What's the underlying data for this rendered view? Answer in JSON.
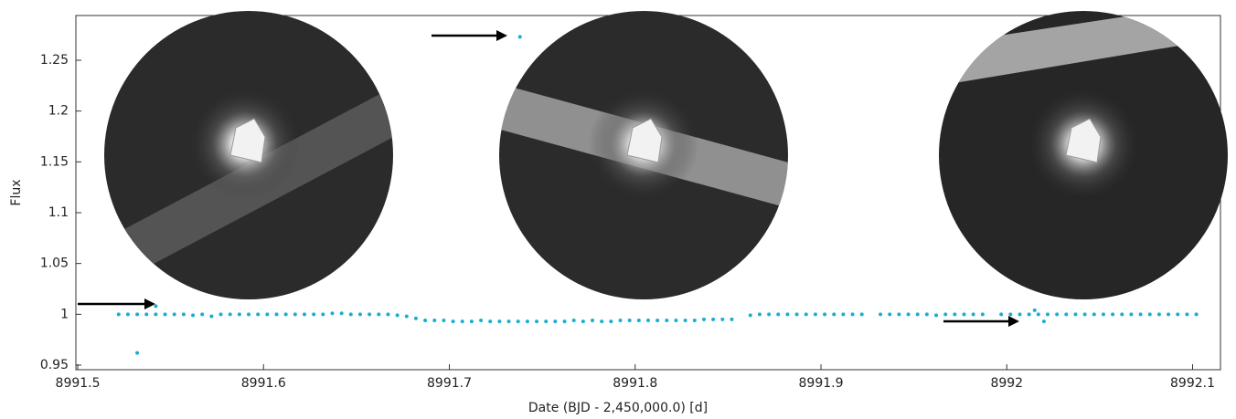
{
  "chart_data": {
    "type": "scatter",
    "xlabel": "Date (BJD - 2,450,000.0) [d]",
    "ylabel": "Flux",
    "color": "#1aaed0",
    "xlim": [
      8991.499,
      8992.115
    ],
    "ylim": [
      0.9455,
      1.294
    ],
    "xticks": [
      8991.5,
      8991.6,
      8991.7,
      8991.8,
      8991.9,
      8992,
      8992.1
    ],
    "yticks": [
      0.95,
      1,
      1.05,
      1.1,
      1.15,
      1.2,
      1.25
    ],
    "x": [
      8991.522,
      8991.527,
      8991.532,
      8991.537,
      8991.542,
      8991.547,
      8991.552,
      8991.557,
      8991.562,
      8991.567,
      8991.572,
      8991.577,
      8991.582,
      8991.587,
      8991.592,
      8991.597,
      8991.602,
      8991.607,
      8991.612,
      8991.617,
      8991.622,
      8991.627,
      8991.632,
      8991.637,
      8991.642,
      8991.647,
      8991.652,
      8991.657,
      8991.662,
      8991.667,
      8991.672,
      8991.677,
      8991.682,
      8991.687,
      8991.692,
      8991.697,
      8991.702,
      8991.707,
      8991.712,
      8991.717,
      8991.722,
      8991.727,
      8991.732,
      8991.737,
      8991.742,
      8991.747,
      8991.752,
      8991.757,
      8991.762,
      8991.767,
      8991.772,
      8991.777,
      8991.782,
      8991.787,
      8991.792,
      8991.797,
      8991.802,
      8991.807,
      8991.812,
      8991.817,
      8991.822,
      8991.827,
      8991.832,
      8991.837,
      8991.842,
      8991.847,
      8991.852,
      8991.862,
      8991.867,
      8991.872,
      8991.877,
      8991.882,
      8991.887,
      8991.892,
      8991.897,
      8991.902,
      8991.907,
      8991.912,
      8991.917,
      8991.922,
      8991.932,
      8991.937,
      8991.942,
      8991.947,
      8991.952,
      8991.957,
      8991.962,
      8991.967,
      8991.972,
      8991.977,
      8991.982,
      8991.987,
      8991.997,
      8992.002,
      8992.007,
      8992.012,
      8992.017,
      8992.022,
      8992.027,
      8992.032,
      8992.037,
      8992.042,
      8992.047,
      8992.052,
      8992.057,
      8992.062,
      8992.067,
      8992.072,
      8992.077,
      8992.082,
      8992.087,
      8992.092,
      8992.097,
      8992.102,
      8991.532,
      8991.542,
      8991.738,
      8992.015,
      8992.02
    ],
    "values": [
      1,
      1,
      1,
      1,
      1,
      1,
      1,
      1,
      0.999,
      1,
      0.998,
      1,
      1,
      1,
      1,
      1,
      1,
      1,
      1,
      1,
      1,
      1,
      1,
      1.001,
      1.001,
      1,
      1,
      1,
      1,
      1,
      0.999,
      0.998,
      0.996,
      0.994,
      0.994,
      0.994,
      0.993,
      0.993,
      0.993,
      0.994,
      0.993,
      0.993,
      0.993,
      0.993,
      0.993,
      0.993,
      0.993,
      0.993,
      0.993,
      0.994,
      0.993,
      0.994,
      0.993,
      0.993,
      0.994,
      0.994,
      0.994,
      0.994,
      0.994,
      0.994,
      0.994,
      0.994,
      0.994,
      0.995,
      0.995,
      0.995,
      0.995,
      0.999,
      1,
      1,
      1,
      1,
      1,
      1,
      1,
      1,
      1,
      1,
      1,
      1,
      1,
      1,
      1,
      1,
      1,
      1,
      0.999,
      1,
      1,
      1,
      1,
      1,
      1,
      1,
      1,
      1,
      1,
      1,
      1,
      1,
      1,
      1,
      1,
      1,
      1,
      1,
      1,
      1,
      1,
      1,
      1,
      1,
      1,
      1,
      0.962,
      1.008,
      1.273,
      1.004,
      0.993
    ]
  }
}
